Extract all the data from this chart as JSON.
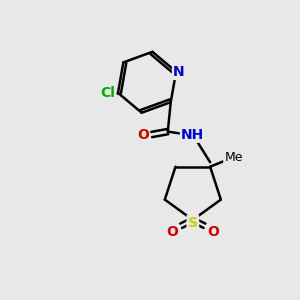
{
  "background_color": "#e8e8e8",
  "atom_colors": {
    "C": "#000000",
    "N": "#0000cc",
    "O": "#cc0000",
    "S": "#cccc00",
    "Cl": "#00aa00",
    "H": "#555555"
  },
  "figsize": [
    3.0,
    3.0
  ],
  "dpi": 100
}
